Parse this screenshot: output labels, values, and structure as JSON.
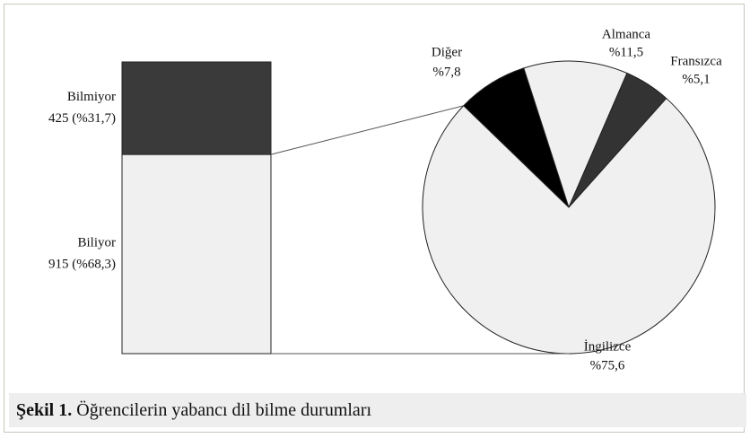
{
  "chart_data": [
    {
      "type": "bar",
      "stacked": true,
      "categories": [
        "Bilmiyor",
        "Biliyor"
      ],
      "values": [
        425,
        915
      ],
      "value_labels": [
        "425 (%31,7)",
        "915 (%68,3)"
      ],
      "colors": [
        "#3a3a3a",
        "#f0f0f0"
      ]
    },
    {
      "type": "pie",
      "categories": [
        "Diğer",
        "Almanca",
        "Fransızca",
        "İngilizce"
      ],
      "values": [
        7.8,
        11.5,
        5.1,
        75.6
      ],
      "value_labels": [
        "%7,8",
        "%11,5",
        "%5,1",
        "%75,6"
      ],
      "colors": [
        "#000000",
        "#f0f0f0",
        "#333333",
        "#f0f0f0"
      ]
    }
  ],
  "caption": {
    "label": "Şekil 1.",
    "text": "Öğrencilerin yabancı dil bilme durumları"
  }
}
